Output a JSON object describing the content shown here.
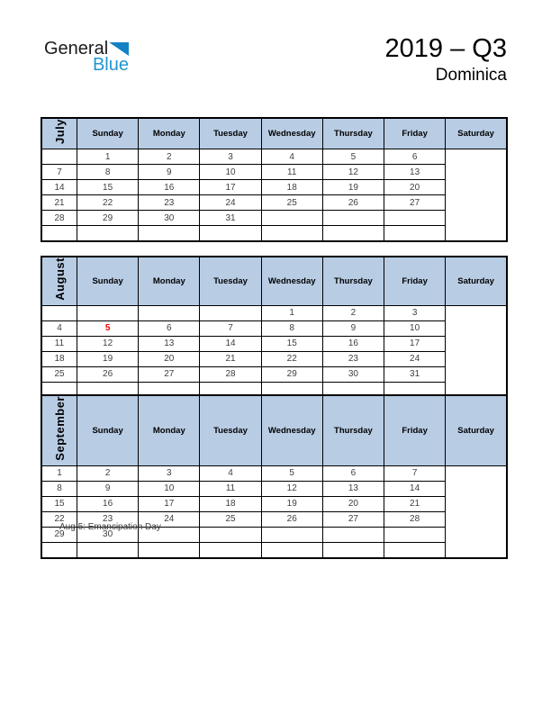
{
  "logo": {
    "general": "General",
    "blue": "Blue"
  },
  "header": {
    "title": "2019 – Q3",
    "subtitle": "Dominica"
  },
  "calendar": {
    "day_headers": [
      "Sunday",
      "Monday",
      "Tuesday",
      "Wednesday",
      "Thursday",
      "Friday",
      "Saturday"
    ],
    "months": [
      {
        "name": "July",
        "weeks": [
          [
            "",
            "1",
            "2",
            "3",
            "4",
            "5",
            "6"
          ],
          [
            "7",
            "8",
            "9",
            "10",
            "11",
            "12",
            "13"
          ],
          [
            "14",
            "15",
            "16",
            "17",
            "18",
            "19",
            "20"
          ],
          [
            "21",
            "22",
            "23",
            "24",
            "25",
            "26",
            "27"
          ],
          [
            "28",
            "29",
            "30",
            "31",
            "",
            "",
            ""
          ],
          [
            "",
            "",
            "",
            "",
            "",
            "",
            ""
          ]
        ],
        "red_cells": []
      },
      {
        "name": "August",
        "weeks": [
          [
            "",
            "",
            "",
            "",
            "1",
            "2",
            "3"
          ],
          [
            "4",
            "5",
            "6",
            "7",
            "8",
            "9",
            "10"
          ],
          [
            "11",
            "12",
            "13",
            "14",
            "15",
            "16",
            "17"
          ],
          [
            "18",
            "19",
            "20",
            "21",
            "22",
            "23",
            "24"
          ],
          [
            "25",
            "26",
            "27",
            "28",
            "29",
            "30",
            "31"
          ],
          [
            "",
            "",
            "",
            "",
            "",
            "",
            ""
          ]
        ],
        "red_cells": [
          [
            1,
            1
          ]
        ]
      },
      {
        "name": "September",
        "weeks": [
          [
            "1",
            "2",
            "3",
            "4",
            "5",
            "6",
            "7"
          ],
          [
            "8",
            "9",
            "10",
            "11",
            "12",
            "13",
            "14"
          ],
          [
            "15",
            "16",
            "17",
            "18",
            "19",
            "20",
            "21"
          ],
          [
            "22",
            "23",
            "24",
            "25",
            "26",
            "27",
            "28"
          ],
          [
            "29",
            "30",
            "",
            "",
            "",
            "",
            ""
          ],
          [
            "",
            "",
            "",
            "",
            "",
            "",
            ""
          ]
        ],
        "red_cells": []
      }
    ]
  },
  "footnote": "Aug 5: Emancipation Day",
  "colors": {
    "header_bg": "#b8cce4",
    "border": "#000000",
    "red": "#ff0000",
    "logo_blue": "#2196d3",
    "triangle_blue": "#1581c5",
    "number_text": "#3f3f3f"
  }
}
